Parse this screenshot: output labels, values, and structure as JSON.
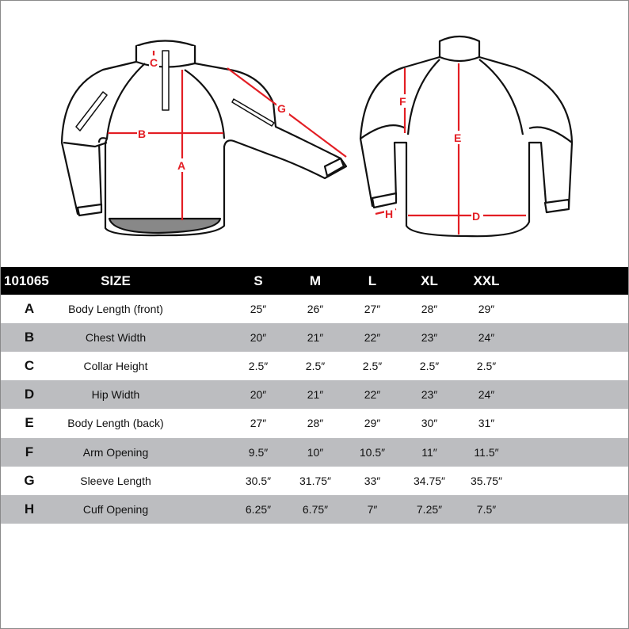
{
  "diagram": {
    "labels": {
      "A": "A",
      "B": "B",
      "C": "C",
      "D": "D",
      "E": "E",
      "F": "F",
      "G": "G",
      "H": "H"
    },
    "measure_color": "#e31e24"
  },
  "table": {
    "header": {
      "code": "101065",
      "size": "SIZE",
      "sizes": [
        "S",
        "M",
        "L",
        "XL",
        "XXL"
      ]
    },
    "rows": [
      {
        "code": "A",
        "name": "Body Length (front)",
        "values": [
          "25″",
          "26″",
          "27″",
          "28″",
          "29″"
        ]
      },
      {
        "code": "B",
        "name": "Chest Width",
        "values": [
          "20″",
          "21″",
          "22″",
          "23″",
          "24″"
        ]
      },
      {
        "code": "C",
        "name": "Collar Height",
        "values": [
          "2.5″",
          "2.5″",
          "2.5″",
          "2.5″",
          "2.5″"
        ]
      },
      {
        "code": "D",
        "name": "Hip Width",
        "values": [
          "20″",
          "21″",
          "22″",
          "23″",
          "24″"
        ]
      },
      {
        "code": "E",
        "name": "Body Length (back)",
        "values": [
          "27″",
          "28″",
          "29″",
          "30″",
          "31″"
        ]
      },
      {
        "code": "F",
        "name": "Arm Opening",
        "values": [
          "9.5″",
          "10″",
          "10.5″",
          "11″",
          "11.5″"
        ]
      },
      {
        "code": "G",
        "name": "Sleeve Length",
        "values": [
          "30.5″",
          "31.75″",
          "33″",
          "34.75″",
          "35.75″"
        ]
      },
      {
        "code": "H",
        "name": "Cuff Opening",
        "values": [
          "6.25″",
          "6.75″",
          "7″",
          "7.25″",
          "7.5″"
        ]
      }
    ],
    "stripe_color": "#bcbdc0"
  }
}
